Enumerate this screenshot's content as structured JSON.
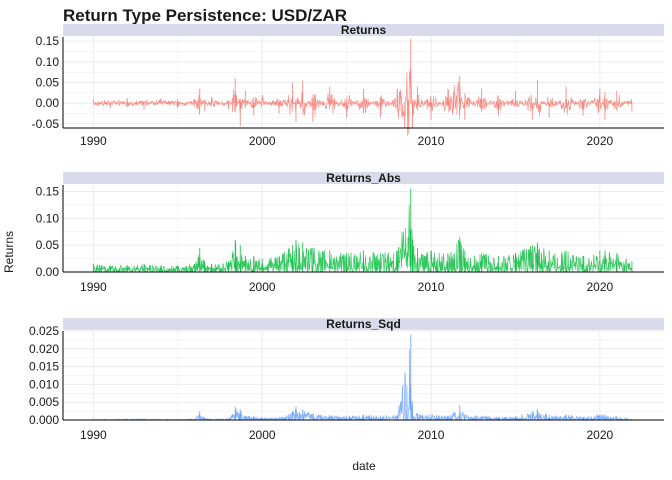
{
  "title": "Return Type Persistence: USD/ZAR",
  "colors": {
    "strip": "#d9dbeb",
    "grid": "#ebebeb",
    "axis": "#000000",
    "series": [
      "#f8766d",
      "#00ba38",
      "#619cff"
    ]
  },
  "chart_data": {
    "type": "line",
    "title": "Return Type Persistence: USD/ZAR",
    "xlabel": "date",
    "ylabel": "Returns",
    "xlim": [
      1988.2,
      2023.8
    ],
    "x_ticks": [
      1990,
      2000,
      2010,
      2020
    ],
    "grid": true,
    "facets": [
      {
        "name": "Returns",
        "ylim": [
          -0.06,
          0.16
        ],
        "y_ticks": [
          -0.05,
          0.0,
          0.05,
          0.1,
          0.15
        ],
        "y_tick_labels": [
          "-0.05",
          "0.00",
          "0.05",
          "0.10",
          "0.15"
        ],
        "points": [
          [
            1990.0,
            0.01
          ],
          [
            1991.0,
            -0.012
          ],
          [
            1992.0,
            0.013
          ],
          [
            1993.0,
            -0.015
          ],
          [
            1994.0,
            0.012
          ],
          [
            1995.0,
            -0.012
          ],
          [
            1996.0,
            0.01
          ],
          [
            1996.3,
            0.035
          ],
          [
            1996.6,
            -0.02
          ],
          [
            1997.0,
            0.015
          ],
          [
            1998.0,
            -0.015
          ],
          [
            1998.4,
            0.06
          ],
          [
            1998.7,
            -0.055
          ],
          [
            1999.0,
            0.03
          ],
          [
            1999.5,
            -0.03
          ],
          [
            2000.0,
            0.02
          ],
          [
            2001.0,
            -0.025
          ],
          [
            2001.8,
            0.05
          ],
          [
            2002.0,
            -0.045
          ],
          [
            2002.4,
            0.055
          ],
          [
            2003.0,
            -0.045
          ],
          [
            2004.0,
            0.04
          ],
          [
            2005.0,
            -0.035
          ],
          [
            2006.0,
            0.035
          ],
          [
            2007.0,
            -0.035
          ],
          [
            2008.0,
            0.035
          ],
          [
            2008.8,
            0.155
          ],
          [
            2008.9,
            -0.06
          ],
          [
            2009.2,
            0.04
          ],
          [
            2010.0,
            -0.04
          ],
          [
            2011.0,
            0.035
          ],
          [
            2011.7,
            0.065
          ],
          [
            2012.0,
            -0.04
          ],
          [
            2013.0,
            0.035
          ],
          [
            2014.0,
            -0.03
          ],
          [
            2015.0,
            0.03
          ],
          [
            2016.0,
            -0.04
          ],
          [
            2016.3,
            0.055
          ],
          [
            2017.0,
            -0.035
          ],
          [
            2018.0,
            0.04
          ],
          [
            2019.0,
            -0.03
          ],
          [
            2020.0,
            0.035
          ],
          [
            2020.3,
            -0.04
          ],
          [
            2021.0,
            0.03
          ],
          [
            2021.9,
            -0.02
          ]
        ]
      },
      {
        "name": "Returns_Abs",
        "ylim": [
          0,
          0.162
        ],
        "y_ticks": [
          0.0,
          0.05,
          0.1,
          0.15
        ],
        "y_tick_labels": [
          "0.00",
          "0.05",
          "0.10",
          "0.15"
        ],
        "points": [
          [
            1990.0,
            0.015
          ],
          [
            1991.0,
            0.012
          ],
          [
            1992.0,
            0.013
          ],
          [
            1993.0,
            0.015
          ],
          [
            1994.0,
            0.012
          ],
          [
            1995.0,
            0.012
          ],
          [
            1996.0,
            0.015
          ],
          [
            1996.3,
            0.045
          ],
          [
            1996.6,
            0.02
          ],
          [
            1997.0,
            0.015
          ],
          [
            1998.0,
            0.02
          ],
          [
            1998.4,
            0.06
          ],
          [
            1998.7,
            0.05
          ],
          [
            1999.0,
            0.03
          ],
          [
            1999.5,
            0.03
          ],
          [
            2000.0,
            0.025
          ],
          [
            2001.0,
            0.03
          ],
          [
            2001.8,
            0.05
          ],
          [
            2002.0,
            0.06
          ],
          [
            2002.4,
            0.055
          ],
          [
            2003.0,
            0.045
          ],
          [
            2004.0,
            0.04
          ],
          [
            2005.0,
            0.035
          ],
          [
            2006.0,
            0.04
          ],
          [
            2007.0,
            0.035
          ],
          [
            2008.0,
            0.04
          ],
          [
            2008.8,
            0.155
          ],
          [
            2008.9,
            0.06
          ],
          [
            2009.2,
            0.045
          ],
          [
            2010.0,
            0.04
          ],
          [
            2011.0,
            0.035
          ],
          [
            2011.7,
            0.065
          ],
          [
            2012.0,
            0.04
          ],
          [
            2013.0,
            0.035
          ],
          [
            2014.0,
            0.03
          ],
          [
            2015.0,
            0.035
          ],
          [
            2016.0,
            0.05
          ],
          [
            2016.3,
            0.055
          ],
          [
            2017.0,
            0.04
          ],
          [
            2018.0,
            0.04
          ],
          [
            2019.0,
            0.03
          ],
          [
            2020.0,
            0.04
          ],
          [
            2020.3,
            0.04
          ],
          [
            2021.0,
            0.035
          ],
          [
            2021.9,
            0.02
          ]
        ]
      },
      {
        "name": "Returns_Sqd",
        "ylim": [
          0,
          0.025
        ],
        "y_ticks": [
          0.0,
          0.005,
          0.01,
          0.015,
          0.02,
          0.025
        ],
        "y_tick_labels": [
          "0.000",
          "0.005",
          "0.010",
          "0.015",
          "0.020",
          "0.025"
        ],
        "points": [
          [
            1990.0,
            0.0003
          ],
          [
            1991.0,
            0.0002
          ],
          [
            1992.0,
            0.0003
          ],
          [
            1993.0,
            0.0003
          ],
          [
            1994.0,
            0.0002
          ],
          [
            1995.0,
            0.0002
          ],
          [
            1996.0,
            0.0003
          ],
          [
            1996.3,
            0.0025
          ],
          [
            1996.6,
            0.0005
          ],
          [
            1997.0,
            0.0003
          ],
          [
            1998.0,
            0.0004
          ],
          [
            1998.4,
            0.0038
          ],
          [
            1998.7,
            0.003
          ],
          [
            1999.0,
            0.0012
          ],
          [
            1999.5,
            0.001
          ],
          [
            2000.0,
            0.0006
          ],
          [
            2001.0,
            0.0008
          ],
          [
            2001.8,
            0.0025
          ],
          [
            2002.0,
            0.0038
          ],
          [
            2002.4,
            0.003
          ],
          [
            2003.0,
            0.0018
          ],
          [
            2004.0,
            0.0014
          ],
          [
            2005.0,
            0.0012
          ],
          [
            2006.0,
            0.0015
          ],
          [
            2007.0,
            0.0012
          ],
          [
            2008.0,
            0.0015
          ],
          [
            2008.8,
            0.024
          ],
          [
            2008.9,
            0.0035
          ],
          [
            2009.2,
            0.0018
          ],
          [
            2010.0,
            0.0015
          ],
          [
            2011.0,
            0.0012
          ],
          [
            2011.7,
            0.0042
          ],
          [
            2012.0,
            0.0015
          ],
          [
            2013.0,
            0.0012
          ],
          [
            2014.0,
            0.0009
          ],
          [
            2015.0,
            0.001
          ],
          [
            2016.0,
            0.0025
          ],
          [
            2016.3,
            0.003
          ],
          [
            2017.0,
            0.0014
          ],
          [
            2018.0,
            0.0016
          ],
          [
            2019.0,
            0.0009
          ],
          [
            2020.0,
            0.0015
          ],
          [
            2020.3,
            0.0015
          ],
          [
            2021.0,
            0.001
          ],
          [
            2021.9,
            0.0004
          ]
        ]
      }
    ]
  }
}
